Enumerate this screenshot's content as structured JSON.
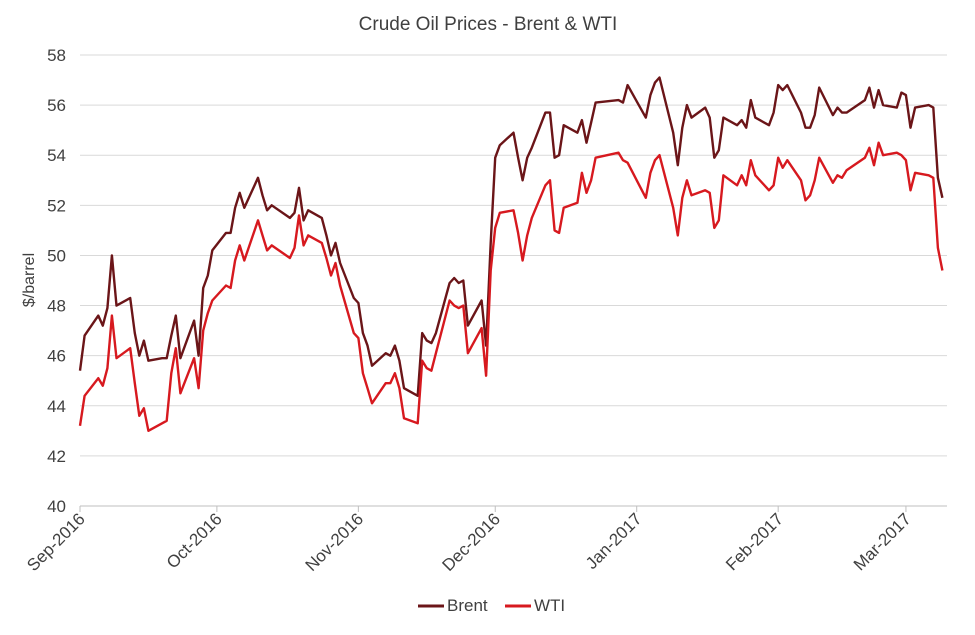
{
  "chart_data": {
    "type": "line",
    "title": "Crude Oil Prices - Brent & WTI",
    "ylabel": "$/barrel",
    "xlabel": "",
    "ylim": [
      40,
      58
    ],
    "yticks": [
      40,
      42,
      44,
      46,
      48,
      50,
      52,
      54,
      56,
      58
    ],
    "xlim": [
      "2016-09-01",
      "2017-03-10"
    ],
    "xticks": [
      {
        "label": "Sep-2016",
        "date": "2016-09-01"
      },
      {
        "label": "Oct-2016",
        "date": "2016-10-01"
      },
      {
        "label": "Nov-2016",
        "date": "2016-11-01"
      },
      {
        "label": "Dec-2016",
        "date": "2016-12-01"
      },
      {
        "label": "Jan-2017",
        "date": "2017-01-01"
      },
      {
        "label": "Feb-2017",
        "date": "2017-02-01"
      },
      {
        "label": "Mar-2017",
        "date": "2017-03-01"
      }
    ],
    "grid": "horizontal",
    "legend": "bottom",
    "series": [
      {
        "name": "Brent",
        "color": "#6b1518",
        "points": [
          [
            "2016-09-01",
            45.4
          ],
          [
            "2016-09-02",
            46.8
          ],
          [
            "2016-09-05",
            47.6
          ],
          [
            "2016-09-06",
            47.2
          ],
          [
            "2016-09-07",
            47.9
          ],
          [
            "2016-09-08",
            50.0
          ],
          [
            "2016-09-09",
            48.0
          ],
          [
            "2016-09-12",
            48.3
          ],
          [
            "2016-09-13",
            46.9
          ],
          [
            "2016-09-14",
            46.0
          ],
          [
            "2016-09-15",
            46.6
          ],
          [
            "2016-09-16",
            45.8
          ],
          [
            "2016-09-19",
            45.9
          ],
          [
            "2016-09-20",
            45.9
          ],
          [
            "2016-09-21",
            46.8
          ],
          [
            "2016-09-22",
            47.6
          ],
          [
            "2016-09-23",
            45.9
          ],
          [
            "2016-09-26",
            47.4
          ],
          [
            "2016-09-27",
            46.0
          ],
          [
            "2016-09-28",
            48.7
          ],
          [
            "2016-09-29",
            49.2
          ],
          [
            "2016-09-30",
            50.2
          ],
          [
            "2016-10-03",
            50.9
          ],
          [
            "2016-10-04",
            50.9
          ],
          [
            "2016-10-05",
            51.9
          ],
          [
            "2016-10-06",
            52.5
          ],
          [
            "2016-10-07",
            51.9
          ],
          [
            "2016-10-10",
            53.1
          ],
          [
            "2016-10-11",
            52.4
          ],
          [
            "2016-10-12",
            51.8
          ],
          [
            "2016-10-13",
            52.0
          ],
          [
            "2016-10-17",
            51.5
          ],
          [
            "2016-10-18",
            51.7
          ],
          [
            "2016-10-19",
            52.7
          ],
          [
            "2016-10-20",
            51.4
          ],
          [
            "2016-10-21",
            51.8
          ],
          [
            "2016-10-24",
            51.5
          ],
          [
            "2016-10-25",
            50.8
          ],
          [
            "2016-10-26",
            50.0
          ],
          [
            "2016-10-27",
            50.5
          ],
          [
            "2016-10-28",
            49.7
          ],
          [
            "2016-10-31",
            48.3
          ],
          [
            "2016-11-01",
            48.1
          ],
          [
            "2016-11-02",
            46.9
          ],
          [
            "2016-11-03",
            46.4
          ],
          [
            "2016-11-04",
            45.6
          ],
          [
            "2016-11-07",
            46.1
          ],
          [
            "2016-11-08",
            46.0
          ],
          [
            "2016-11-09",
            46.4
          ],
          [
            "2016-11-10",
            45.8
          ],
          [
            "2016-11-11",
            44.7
          ],
          [
            "2016-11-14",
            44.4
          ],
          [
            "2016-11-15",
            46.9
          ],
          [
            "2016-11-16",
            46.6
          ],
          [
            "2016-11-17",
            46.5
          ],
          [
            "2016-11-18",
            46.9
          ],
          [
            "2016-11-21",
            48.9
          ],
          [
            "2016-11-22",
            49.1
          ],
          [
            "2016-11-23",
            48.9
          ],
          [
            "2016-11-24",
            49.0
          ],
          [
            "2016-11-25",
            47.2
          ],
          [
            "2016-11-28",
            48.2
          ],
          [
            "2016-11-29",
            46.4
          ],
          [
            "2016-11-30",
            50.5
          ],
          [
            "2016-12-01",
            53.9
          ],
          [
            "2016-12-02",
            54.4
          ],
          [
            "2016-12-05",
            54.9
          ],
          [
            "2016-12-06",
            53.9
          ],
          [
            "2016-12-07",
            53.0
          ],
          [
            "2016-12-08",
            53.9
          ],
          [
            "2016-12-09",
            54.3
          ],
          [
            "2016-12-12",
            55.7
          ],
          [
            "2016-12-13",
            55.7
          ],
          [
            "2016-12-14",
            53.9
          ],
          [
            "2016-12-15",
            54.0
          ],
          [
            "2016-12-16",
            55.2
          ],
          [
            "2016-12-19",
            54.9
          ],
          [
            "2016-12-20",
            55.4
          ],
          [
            "2016-12-21",
            54.5
          ],
          [
            "2016-12-22",
            55.3
          ],
          [
            "2016-12-23",
            56.1
          ],
          [
            "2016-12-28",
            56.2
          ],
          [
            "2016-12-29",
            56.1
          ],
          [
            "2016-12-30",
            56.8
          ],
          [
            "2017-01-03",
            55.5
          ],
          [
            "2017-01-04",
            56.4
          ],
          [
            "2017-01-05",
            56.9
          ],
          [
            "2017-01-06",
            57.1
          ],
          [
            "2017-01-09",
            54.9
          ],
          [
            "2017-01-10",
            53.6
          ],
          [
            "2017-01-11",
            55.1
          ],
          [
            "2017-01-12",
            56.0
          ],
          [
            "2017-01-13",
            55.5
          ],
          [
            "2017-01-16",
            55.9
          ],
          [
            "2017-01-17",
            55.5
          ],
          [
            "2017-01-18",
            53.9
          ],
          [
            "2017-01-19",
            54.2
          ],
          [
            "2017-01-20",
            55.5
          ],
          [
            "2017-01-23",
            55.2
          ],
          [
            "2017-01-24",
            55.4
          ],
          [
            "2017-01-25",
            55.1
          ],
          [
            "2017-01-26",
            56.2
          ],
          [
            "2017-01-27",
            55.5
          ],
          [
            "2017-01-30",
            55.2
          ],
          [
            "2017-01-31",
            55.7
          ],
          [
            "2017-02-01",
            56.8
          ],
          [
            "2017-02-02",
            56.6
          ],
          [
            "2017-02-03",
            56.8
          ],
          [
            "2017-02-06",
            55.7
          ],
          [
            "2017-02-07",
            55.1
          ],
          [
            "2017-02-08",
            55.1
          ],
          [
            "2017-02-09",
            55.6
          ],
          [
            "2017-02-10",
            56.7
          ],
          [
            "2017-02-13",
            55.6
          ],
          [
            "2017-02-14",
            55.9
          ],
          [
            "2017-02-15",
            55.7
          ],
          [
            "2017-02-16",
            55.7
          ],
          [
            "2017-02-20",
            56.2
          ],
          [
            "2017-02-21",
            56.7
          ],
          [
            "2017-02-22",
            55.9
          ],
          [
            "2017-02-23",
            56.6
          ],
          [
            "2017-02-24",
            56.0
          ],
          [
            "2017-02-27",
            55.9
          ],
          [
            "2017-02-28",
            56.5
          ],
          [
            "2017-03-01",
            56.4
          ],
          [
            "2017-03-02",
            55.1
          ],
          [
            "2017-03-03",
            55.9
          ],
          [
            "2017-03-06",
            56.0
          ],
          [
            "2017-03-07",
            55.9
          ],
          [
            "2017-03-08",
            53.1
          ],
          [
            "2017-03-09",
            52.3
          ]
        ]
      },
      {
        "name": "WTI",
        "color": "#d7191f",
        "points": [
          [
            "2016-09-01",
            43.2
          ],
          [
            "2016-09-02",
            44.4
          ],
          [
            "2016-09-05",
            45.1
          ],
          [
            "2016-09-06",
            44.8
          ],
          [
            "2016-09-07",
            45.5
          ],
          [
            "2016-09-08",
            47.6
          ],
          [
            "2016-09-09",
            45.9
          ],
          [
            "2016-09-12",
            46.3
          ],
          [
            "2016-09-13",
            44.9
          ],
          [
            "2016-09-14",
            43.6
          ],
          [
            "2016-09-15",
            43.9
          ],
          [
            "2016-09-16",
            43.0
          ],
          [
            "2016-09-19",
            43.3
          ],
          [
            "2016-09-20",
            43.4
          ],
          [
            "2016-09-21",
            45.3
          ],
          [
            "2016-09-22",
            46.3
          ],
          [
            "2016-09-23",
            44.5
          ],
          [
            "2016-09-26",
            45.9
          ],
          [
            "2016-09-27",
            44.7
          ],
          [
            "2016-09-28",
            47.0
          ],
          [
            "2016-09-29",
            47.7
          ],
          [
            "2016-09-30",
            48.2
          ],
          [
            "2016-10-03",
            48.8
          ],
          [
            "2016-10-04",
            48.7
          ],
          [
            "2016-10-05",
            49.8
          ],
          [
            "2016-10-06",
            50.4
          ],
          [
            "2016-10-07",
            49.8
          ],
          [
            "2016-10-10",
            51.4
          ],
          [
            "2016-10-11",
            50.8
          ],
          [
            "2016-10-12",
            50.2
          ],
          [
            "2016-10-13",
            50.4
          ],
          [
            "2016-10-17",
            49.9
          ],
          [
            "2016-10-18",
            50.3
          ],
          [
            "2016-10-19",
            51.6
          ],
          [
            "2016-10-20",
            50.4
          ],
          [
            "2016-10-21",
            50.8
          ],
          [
            "2016-10-24",
            50.5
          ],
          [
            "2016-10-25",
            49.9
          ],
          [
            "2016-10-26",
            49.2
          ],
          [
            "2016-10-27",
            49.7
          ],
          [
            "2016-10-28",
            48.8
          ],
          [
            "2016-10-31",
            46.9
          ],
          [
            "2016-11-01",
            46.7
          ],
          [
            "2016-11-02",
            45.3
          ],
          [
            "2016-11-03",
            44.7
          ],
          [
            "2016-11-04",
            44.1
          ],
          [
            "2016-11-07",
            44.9
          ],
          [
            "2016-11-08",
            44.9
          ],
          [
            "2016-11-09",
            45.3
          ],
          [
            "2016-11-10",
            44.7
          ],
          [
            "2016-11-11",
            43.5
          ],
          [
            "2016-11-14",
            43.3
          ],
          [
            "2016-11-15",
            45.8
          ],
          [
            "2016-11-16",
            45.5
          ],
          [
            "2016-11-17",
            45.4
          ],
          [
            "2016-11-18",
            46.1
          ],
          [
            "2016-11-21",
            48.2
          ],
          [
            "2016-11-22",
            48.0
          ],
          [
            "2016-11-23",
            47.9
          ],
          [
            "2016-11-24",
            48.0
          ],
          [
            "2016-11-25",
            46.1
          ],
          [
            "2016-11-28",
            47.1
          ],
          [
            "2016-11-29",
            45.2
          ],
          [
            "2016-11-30",
            49.4
          ],
          [
            "2016-12-01",
            51.1
          ],
          [
            "2016-12-02",
            51.7
          ],
          [
            "2016-12-05",
            51.8
          ],
          [
            "2016-12-06",
            50.9
          ],
          [
            "2016-12-07",
            49.8
          ],
          [
            "2016-12-08",
            50.8
          ],
          [
            "2016-12-09",
            51.5
          ],
          [
            "2016-12-12",
            52.8
          ],
          [
            "2016-12-13",
            53.0
          ],
          [
            "2016-12-14",
            51.0
          ],
          [
            "2016-12-15",
            50.9
          ],
          [
            "2016-12-16",
            51.9
          ],
          [
            "2016-12-19",
            52.1
          ],
          [
            "2016-12-20",
            53.3
          ],
          [
            "2016-12-21",
            52.5
          ],
          [
            "2016-12-22",
            53.0
          ],
          [
            "2016-12-23",
            53.9
          ],
          [
            "2016-12-28",
            54.1
          ],
          [
            "2016-12-29",
            53.8
          ],
          [
            "2016-12-30",
            53.7
          ],
          [
            "2017-01-03",
            52.3
          ],
          [
            "2017-01-04",
            53.3
          ],
          [
            "2017-01-05",
            53.8
          ],
          [
            "2017-01-06",
            54.0
          ],
          [
            "2017-01-09",
            51.9
          ],
          [
            "2017-01-10",
            50.8
          ],
          [
            "2017-01-11",
            52.3
          ],
          [
            "2017-01-12",
            53.0
          ],
          [
            "2017-01-13",
            52.4
          ],
          [
            "2017-01-16",
            52.6
          ],
          [
            "2017-01-17",
            52.5
          ],
          [
            "2017-01-18",
            51.1
          ],
          [
            "2017-01-19",
            51.4
          ],
          [
            "2017-01-20",
            53.2
          ],
          [
            "2017-01-23",
            52.8
          ],
          [
            "2017-01-24",
            53.2
          ],
          [
            "2017-01-25",
            52.8
          ],
          [
            "2017-01-26",
            53.8
          ],
          [
            "2017-01-27",
            53.2
          ],
          [
            "2017-01-30",
            52.6
          ],
          [
            "2017-01-31",
            52.8
          ],
          [
            "2017-02-01",
            53.9
          ],
          [
            "2017-02-02",
            53.5
          ],
          [
            "2017-02-03",
            53.8
          ],
          [
            "2017-02-06",
            53.0
          ],
          [
            "2017-02-07",
            52.2
          ],
          [
            "2017-02-08",
            52.4
          ],
          [
            "2017-02-09",
            53.0
          ],
          [
            "2017-02-10",
            53.9
          ],
          [
            "2017-02-13",
            52.9
          ],
          [
            "2017-02-14",
            53.2
          ],
          [
            "2017-02-15",
            53.1
          ],
          [
            "2017-02-16",
            53.4
          ],
          [
            "2017-02-20",
            53.9
          ],
          [
            "2017-02-21",
            54.3
          ],
          [
            "2017-02-22",
            53.6
          ],
          [
            "2017-02-23",
            54.5
          ],
          [
            "2017-02-24",
            54.0
          ],
          [
            "2017-02-27",
            54.1
          ],
          [
            "2017-02-28",
            54.0
          ],
          [
            "2017-03-01",
            53.8
          ],
          [
            "2017-03-02",
            52.6
          ],
          [
            "2017-03-03",
            53.3
          ],
          [
            "2017-03-06",
            53.2
          ],
          [
            "2017-03-07",
            53.1
          ],
          [
            "2017-03-08",
            50.3
          ],
          [
            "2017-03-09",
            49.4
          ]
        ]
      }
    ]
  }
}
